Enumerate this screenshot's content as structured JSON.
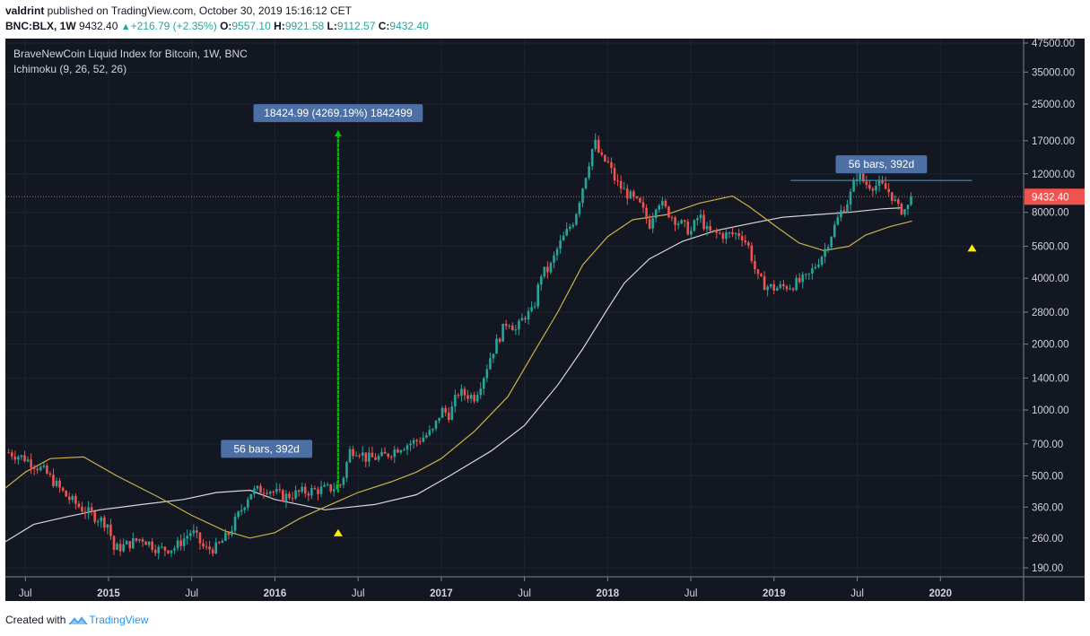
{
  "header": {
    "author": "valdrint",
    "published": " published on TradingView.com, October 30, 2019 15:16:12 CET",
    "symbol": "BNC:BLX, 1W",
    "last": "9432.40",
    "change": "+216.79 (+2.35%)",
    "o_label": "O:",
    "o_value": "9557.10",
    "h_label": "H:",
    "h_value": "9921.58",
    "l_label": "L:",
    "l_value": "9112.57",
    "c_label": "C:",
    "c_value": "9432.40",
    "up_arrow": "▲"
  },
  "footer": {
    "created_with": "Created with",
    "brand": "TradingView",
    "logo_icon": "tradingview-logo-icon"
  },
  "colors": {
    "background": "#131722",
    "up": "#26a69a",
    "down": "#ef5350",
    "ma_yellow": "#c8b14a",
    "ma_white": "#d8d8d8",
    "measure": "#00c400",
    "label_bg": "#4c6fa6",
    "price_line": "#ef5350",
    "marker": "#ffee00"
  },
  "chart_data": {
    "type": "line",
    "title": "BraveNewCoin Liquid Index for Bitcoin, 1W, BNC",
    "indicator": "Ichimoku (9, 26, 52, 26)",
    "y_scale": "log",
    "ylim": [
      150,
      50000
    ],
    "y_ticks": [
      "190.00",
      "260.00",
      "360.00",
      "500.00",
      "700.00",
      "1000.00",
      "1400.00",
      "2000.00",
      "2800.00",
      "4000.00",
      "5600.00",
      "8000.00",
      "12000.00",
      "17000.00",
      "25000.00",
      "35000.00",
      "47500.00"
    ],
    "y_tick_values": [
      190,
      260,
      360,
      500,
      700,
      1000,
      1400,
      2000,
      2800,
      4000,
      5600,
      8000,
      12000,
      17000,
      25000,
      35000,
      47500
    ],
    "x_ticks": [
      "Jul",
      "2015",
      "Jul",
      "2016",
      "Jul",
      "2017",
      "Jul",
      "2018",
      "Jul",
      "2019",
      "Jul",
      "2020"
    ],
    "x_tick_dates": [
      2014.5,
      2015.0,
      2015.5,
      2016.0,
      2016.5,
      2017.0,
      2017.5,
      2018.0,
      2018.5,
      2019.0,
      2019.5,
      2020.0
    ],
    "xlim": [
      2014.38,
      2020.5
    ],
    "last_price": 9432.4,
    "last_price_label": "9432.40",
    "series": [
      {
        "kind": "close",
        "x": [
          2014.4,
          2014.5,
          2014.62,
          2014.75,
          2014.85,
          2015.0,
          2015.03,
          2015.1,
          2015.2,
          2015.3,
          2015.4,
          2015.5,
          2015.58,
          2015.65,
          2015.72,
          2015.78,
          2015.85,
          2015.95,
          2016.05,
          2016.15,
          2016.25,
          2016.35,
          2016.4,
          2016.45,
          2016.5,
          2016.55,
          2016.65,
          2016.75,
          2016.85,
          2016.95,
          2017.0,
          2017.05,
          2017.1,
          2017.2,
          2017.25,
          2017.3,
          2017.4,
          2017.45,
          2017.5,
          2017.55,
          2017.6,
          2017.65,
          2017.7,
          2017.8,
          2017.85,
          2017.92,
          2017.96,
          2018.0,
          2018.05,
          2018.1,
          2018.2,
          2018.25,
          2018.3,
          2018.35,
          2018.4,
          2018.5,
          2018.55,
          2018.6,
          2018.7,
          2018.8,
          2018.85,
          2018.9,
          2018.95,
          2019.0,
          2019.1,
          2019.2,
          2019.3,
          2019.4,
          2019.45,
          2019.5,
          2019.55,
          2019.65,
          2019.7,
          2019.75,
          2019.8,
          2019.83
        ],
        "values": [
          640,
          600,
          520,
          400,
          350,
          300,
          230,
          240,
          260,
          230,
          235,
          280,
          230,
          235,
          270,
          330,
          420,
          440,
          400,
          420,
          430,
          440,
          460,
          650,
          660,
          600,
          610,
          680,
          720,
          800,
          1000,
          950,
          1200,
          1150,
          1400,
          1800,
          2600,
          2300,
          2700,
          2800,
          4200,
          4400,
          5500,
          7500,
          10500,
          17000,
          14000,
          13500,
          11000,
          10000,
          8500,
          7000,
          9200,
          8200,
          7500,
          6500,
          7800,
          6500,
          6300,
          6400,
          5500,
          4000,
          3700,
          3600,
          3700,
          4000,
          5300,
          8000,
          9200,
          12000,
          10800,
          10500,
          9800,
          8200,
          8300,
          9432
        ]
      },
      {
        "kind": "ma_white",
        "x": [
          2014.38,
          2014.55,
          2014.75,
          2014.95,
          2015.2,
          2015.45,
          2015.65,
          2015.85,
          2016.0,
          2016.3,
          2016.6,
          2016.85,
          2017.05,
          2017.3,
          2017.5,
          2017.7,
          2017.85,
          2018.0,
          2018.1,
          2018.25,
          2018.45,
          2018.65,
          2018.85,
          2019.05,
          2019.25,
          2019.45,
          2019.65,
          2019.77
        ],
        "values": [
          250,
          300,
          325,
          350,
          370,
          390,
          420,
          430,
          390,
          350,
          370,
          410,
          500,
          650,
          850,
          1300,
          1900,
          2900,
          3800,
          4900,
          5900,
          6600,
          7100,
          7600,
          7800,
          8000,
          8300,
          8400
        ]
      },
      {
        "kind": "ma_yellow",
        "x": [
          2014.38,
          2014.5,
          2014.65,
          2014.85,
          2015.05,
          2015.3,
          2015.5,
          2015.7,
          2015.85,
          2016.0,
          2016.15,
          2016.3,
          2016.5,
          2016.7,
          2016.85,
          2017.0,
          2017.2,
          2017.4,
          2017.55,
          2017.7,
          2017.85,
          2018.0,
          2018.15,
          2018.35,
          2018.55,
          2018.75,
          2018.85,
          2019.0,
          2019.15,
          2019.3,
          2019.45,
          2019.55,
          2019.7,
          2019.83
        ],
        "values": [
          440,
          520,
          600,
          610,
          500,
          400,
          330,
          280,
          260,
          275,
          320,
          360,
          420,
          470,
          520,
          600,
          800,
          1150,
          1800,
          2800,
          4600,
          6200,
          7400,
          7800,
          8800,
          9500,
          8500,
          7000,
          5800,
          5350,
          5600,
          6300,
          6900,
          7300
        ]
      }
    ],
    "annotations": [
      {
        "type": "measure",
        "x": 2016.38,
        "y_from": 420,
        "y_to": 19000,
        "label": "18424.99 (4269.19%) 1842499"
      },
      {
        "type": "range",
        "label": "56 bars, 392d",
        "x": 2015.95,
        "y": 640
      },
      {
        "type": "range",
        "label": "56 bars, 392d",
        "x1": 2019.1,
        "x2": 2020.19,
        "y": 11200
      }
    ],
    "markers": [
      {
        "x": 2016.38,
        "y": 275
      },
      {
        "x": 2020.19,
        "y": 5500
      }
    ]
  }
}
